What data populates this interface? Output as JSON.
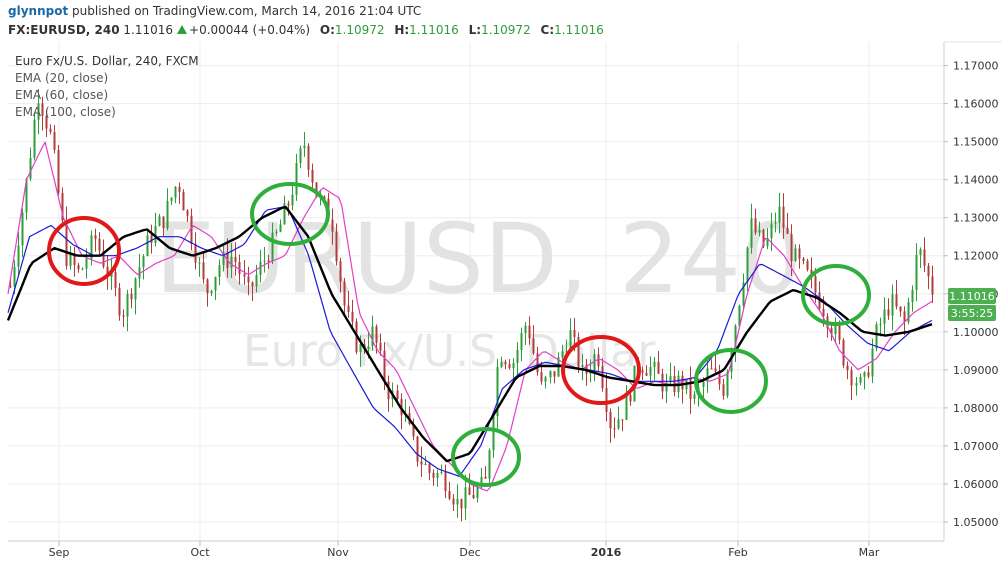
{
  "header": {
    "author": "glynnpot",
    "published": "published on TradingView.com, March 14, 2016 21:04 UTC",
    "symbol": "FX:EURUSD, 240",
    "last": "1.11016",
    "change": "+0.00044 (+0.04%)",
    "o_label": "O:",
    "o_value": "1.10972",
    "h_label": "H:",
    "h_value": "1.11016",
    "l_label": "L:",
    "l_value": "1.10972",
    "c_label": "C:",
    "c_value": "1.11016"
  },
  "legend": {
    "title": "Euro Fx/U.S. Dollar, 240, FXCM",
    "ema20": "EMA (20, close)",
    "ema60": "EMA (60, close)",
    "ema100": "EMA (100, close)"
  },
  "watermark": {
    "symbol": "EURUSD, 240",
    "name": "Euro Fx/U.S. Dollar"
  },
  "price_tag": {
    "value": "1.11016",
    "countdown": "3:55:25"
  },
  "colors": {
    "up": "#2e9e3a",
    "down": "#b23b3b",
    "ema20": "#e040c8",
    "ema60": "#1a1ad8",
    "ema100": "#000000",
    "circle_red": "#e01818",
    "circle_green": "#2eae3a",
    "price_tag": "#4caf50"
  },
  "chart_data": {
    "type": "line",
    "x_ticks": [
      "Sep",
      "Oct",
      "Nov",
      "Dec",
      "2016",
      "Feb",
      "Mar"
    ],
    "y_ticks": [
      "1.17000",
      "1.16000",
      "1.15000",
      "1.14000",
      "1.13000",
      "1.12000",
      "1.11000",
      "1.10000",
      "1.09000",
      "1.08000",
      "1.07000",
      "1.06000",
      "1.05000"
    ],
    "ylim": [
      1.045,
      1.1762
    ],
    "price_path": [
      1.112,
      1.135,
      1.163,
      1.15,
      1.12,
      1.115,
      1.125,
      1.115,
      1.105,
      1.115,
      1.125,
      1.13,
      1.14,
      1.125,
      1.11,
      1.118,
      1.12,
      1.11,
      1.118,
      1.125,
      1.135,
      1.15,
      1.135,
      1.13,
      1.105,
      1.095,
      1.1,
      1.085,
      1.08,
      1.068,
      1.063,
      1.062,
      1.055,
      1.057,
      1.06,
      1.095,
      1.092,
      1.103,
      1.085,
      1.09,
      1.1,
      1.088,
      1.095,
      1.075,
      1.08,
      1.092,
      1.09,
      1.085,
      1.087,
      1.082,
      1.09,
      1.085,
      1.105,
      1.128,
      1.122,
      1.132,
      1.12,
      1.115,
      1.108,
      1.1,
      1.09,
      1.085,
      1.1,
      1.108,
      1.102,
      1.122,
      1.111
    ],
    "series": [
      {
        "name": "EMA (20, close)",
        "values": [
          1.11,
          1.14,
          1.15,
          1.13,
          1.12,
          1.118,
          1.12,
          1.115,
          1.118,
          1.12,
          1.128,
          1.125,
          1.118,
          1.115,
          1.118,
          1.12,
          1.13,
          1.138,
          1.135,
          1.105,
          1.095,
          1.09,
          1.08,
          1.07,
          1.065,
          1.06,
          1.058,
          1.07,
          1.09,
          1.095,
          1.092,
          1.09,
          1.093,
          1.09,
          1.085,
          1.087,
          1.086,
          1.088,
          1.087,
          1.089,
          1.11,
          1.125,
          1.12,
          1.112,
          1.105,
          1.095,
          1.09,
          1.093,
          1.1,
          1.105,
          1.108
        ]
      },
      {
        "name": "EMA (60, close)",
        "values": [
          1.105,
          1.125,
          1.128,
          1.123,
          1.12,
          1.12,
          1.122,
          1.125,
          1.125,
          1.122,
          1.12,
          1.123,
          1.132,
          1.133,
          1.12,
          1.1,
          1.09,
          1.08,
          1.075,
          1.068,
          1.064,
          1.062,
          1.07,
          1.085,
          1.09,
          1.092,
          1.091,
          1.09,
          1.089,
          1.087,
          1.087,
          1.087,
          1.088,
          1.095,
          1.11,
          1.118,
          1.115,
          1.112,
          1.108,
          1.102,
          1.097,
          1.095,
          1.1,
          1.103
        ]
      },
      {
        "name": "EMA (100, close)",
        "values": [
          1.103,
          1.118,
          1.122,
          1.12,
          1.12,
          1.125,
          1.127,
          1.122,
          1.12,
          1.122,
          1.125,
          1.13,
          1.133,
          1.125,
          1.11,
          1.1,
          1.09,
          1.08,
          1.072,
          1.066,
          1.068,
          1.078,
          1.088,
          1.091,
          1.091,
          1.09,
          1.088,
          1.087,
          1.086,
          1.086,
          1.087,
          1.09,
          1.1,
          1.108,
          1.111,
          1.109,
          1.105,
          1.1,
          1.099,
          1.1,
          1.102
        ]
      }
    ],
    "annotations": [
      {
        "color": "red"
      },
      {
        "color": "green"
      },
      {
        "color": "green"
      },
      {
        "color": "red"
      },
      {
        "color": "green"
      },
      {
        "color": "green"
      }
    ]
  }
}
